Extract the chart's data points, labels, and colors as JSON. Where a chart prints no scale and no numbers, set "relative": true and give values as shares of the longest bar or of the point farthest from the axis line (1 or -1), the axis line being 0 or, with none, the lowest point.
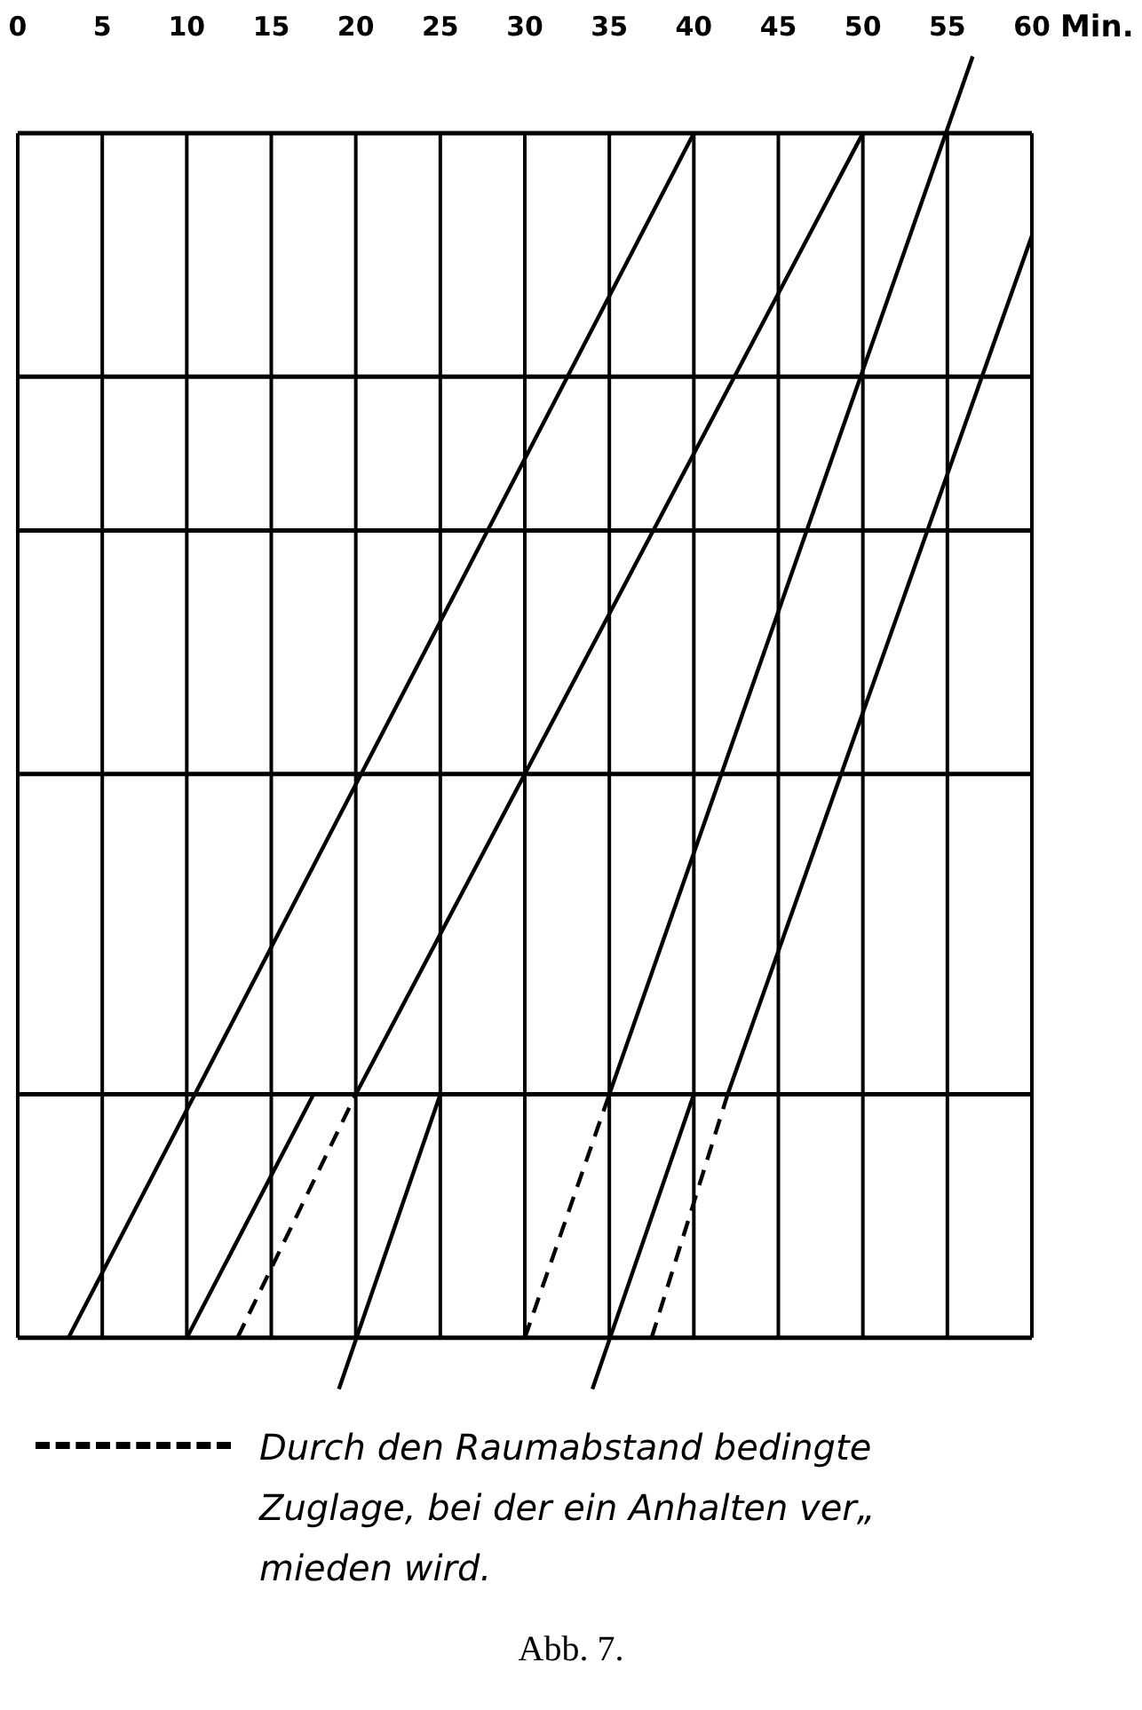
{
  "chart_data": {
    "type": "line",
    "relative": true,
    "xlabel": "Min.",
    "xlim": [
      0,
      60
    ],
    "xticks": [
      0,
      5,
      10,
      15,
      20,
      25,
      30,
      35,
      40,
      45,
      50,
      55,
      60
    ],
    "grid": "x",
    "legend": "bottom",
    "series": [
      {
        "color": "#000000",
        "x": [
          3,
          40
        ],
        "values": [
          0,
          0.94
        ]
      },
      {
        "color": "#000000",
        "x": [
          10,
          17.5,
          20,
          50
        ],
        "values": [
          0,
          0.19,
          0.19,
          0.94
        ]
      },
      {
        "color": "#000000",
        "line_style": "dashed",
        "x": [
          13,
          20
        ],
        "values": [
          0,
          0.19
        ]
      },
      {
        "color": "#000000",
        "x": [
          19,
          25
        ],
        "values": [
          -0.04,
          0.19
        ]
      },
      {
        "name": "Durch den Raumabstand bedingte Zuglage, bei der ein Anhalten ver„ mieden wird.",
        "color": "#000000",
        "line_style": "dashed",
        "x": [
          30,
          35
        ],
        "values": [
          0,
          0.19
        ]
      },
      {
        "color": "#000000",
        "x": [
          35,
          56.5
        ],
        "values": [
          0.19,
          1
        ]
      },
      {
        "color": "#000000",
        "x": [
          34,
          40,
          42,
          60
        ],
        "values": [
          -0.04,
          0.19,
          0.19,
          0.86
        ]
      },
      {
        "color": "#000000",
        "line_style": "dashed",
        "x": [
          37.5,
          42
        ],
        "values": [
          0,
          0.19
        ]
      }
    ],
    "ref_lines": [
      {
        "axis": "y",
        "value": 0.19
      },
      {
        "axis": "y",
        "value": 0.44
      },
      {
        "axis": "y",
        "value": 0.63
      },
      {
        "axis": "y",
        "value": 0.75
      },
      {
        "axis": "y",
        "value": 0.94
      }
    ],
    "annotations": [
      "Abb. 7."
    ]
  }
}
